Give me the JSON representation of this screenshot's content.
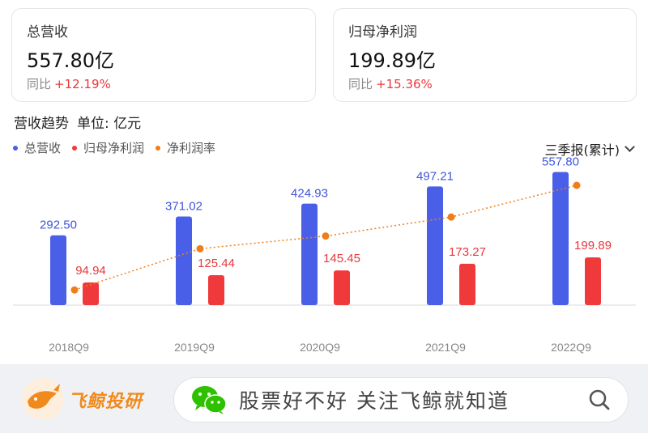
{
  "cards": {
    "revenue": {
      "title": "总营收",
      "value": "557.80亿",
      "yoy_label": "同比",
      "yoy_value": "+12.19%"
    },
    "profit": {
      "title": "归母净利润",
      "value": "199.89亿",
      "yoy_label": "同比",
      "yoy_value": "+15.36%"
    }
  },
  "section": {
    "title": "营收趋势",
    "unit": "单位: 亿元"
  },
  "period_selector": "三季报(累计)",
  "footer": {
    "brand": "飞鲸投研",
    "search_text": "股票好不好 关注飞鲸就知道"
  },
  "colors": {
    "revenue": "#4a5fe8",
    "profit": "#f0393b",
    "margin": "#f07d1a",
    "yoy": "#e8383d"
  },
  "chart_data": {
    "type": "bar",
    "categories": [
      "2018Q9",
      "2019Q9",
      "2020Q9",
      "2021Q9",
      "2022Q9"
    ],
    "series": [
      {
        "name": "总营收",
        "type": "bar",
        "values": [
          292.5,
          371.02,
          424.93,
          497.21,
          557.8
        ]
      },
      {
        "name": "归母净利润",
        "type": "bar",
        "values": [
          94.94,
          125.44,
          145.45,
          173.27,
          199.89
        ]
      },
      {
        "name": "净利润率",
        "type": "line",
        "values": [
          32.5,
          33.8,
          34.2,
          34.8,
          35.8
        ]
      }
    ],
    "ylim": [
      0,
      600
    ],
    "margin_ylim": [
      32.2,
      35.8
    ],
    "legend_position": "top-left"
  }
}
